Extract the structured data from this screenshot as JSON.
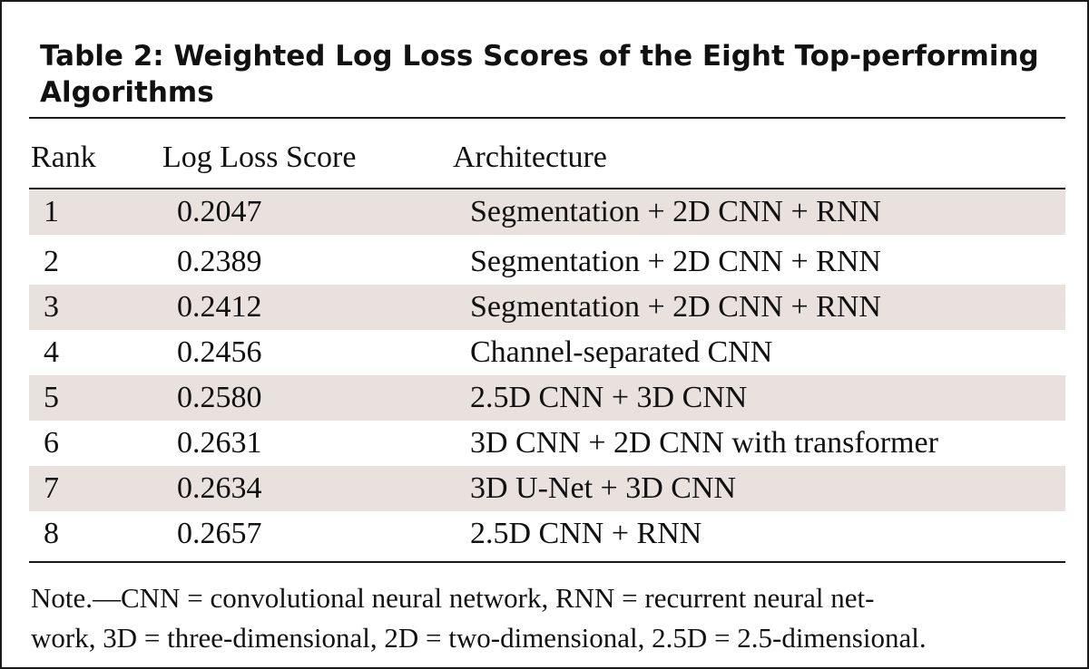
{
  "table": {
    "title": "Table 2: Weighted Log Loss Scores of the Eight Top-performing Algorithms",
    "headers": {
      "rank": "Rank",
      "score": "Log Loss Score",
      "architecture": "Architecture"
    },
    "rows": [
      {
        "rank": "1",
        "score": "0.2047",
        "architecture": "Segmentation + 2D CNN + RNN"
      },
      {
        "rank": "2",
        "score": "0.2389",
        "architecture": "Segmentation + 2D CNN + RNN"
      },
      {
        "rank": "3",
        "score": "0.2412",
        "architecture": "Segmentation + 2D CNN + RNN"
      },
      {
        "rank": "4",
        "score": "0.2456",
        "architecture": "Channel-separated CNN"
      },
      {
        "rank": "5",
        "score": "0.2580",
        "architecture": "2.5D CNN + 3D CNN"
      },
      {
        "rank": "6",
        "score": "0.2631",
        "architecture": "3D CNN + 2D CNN with transformer"
      },
      {
        "rank": "7",
        "score": "0.2634",
        "architecture": "3D U-Net + 3D CNN"
      },
      {
        "rank": "8",
        "score": "0.2657",
        "architecture": "2.5D CNN + RNN"
      }
    ],
    "note_line1": "Note.—CNN = convolutional neural network, RNN = recurrent neural net-",
    "note_line2": "work, 3D = three-dimensional, 2D = two-dimensional, 2.5D = 2.5-dimensional.",
    "colors": {
      "shaded_row": "#e8e1de",
      "rule": "#1a1a1a",
      "text": "#111111"
    }
  }
}
